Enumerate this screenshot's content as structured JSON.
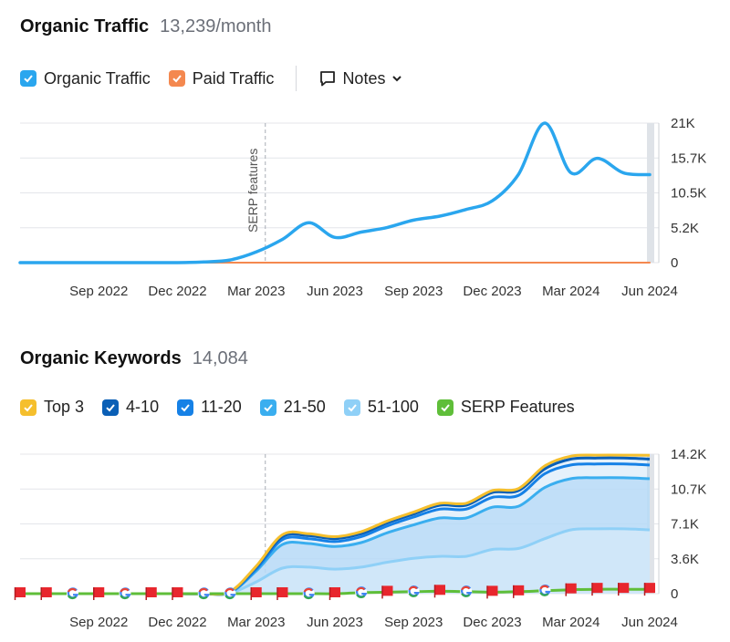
{
  "traffic": {
    "title": "Organic Traffic",
    "metric": "13,239/month",
    "legend": [
      {
        "label": "Organic Traffic",
        "color": "#2aa6ee"
      },
      {
        "label": "Paid Traffic",
        "color": "#f4884f"
      }
    ],
    "notes_label": "Notes",
    "annotation": "SERP features"
  },
  "keywords": {
    "title": "Organic Keywords",
    "metric": "14,084",
    "legend": [
      {
        "label": "Top 3",
        "color": "#f5bf2d"
      },
      {
        "label": "4-10",
        "color": "#0a5fb6"
      },
      {
        "label": "11-20",
        "color": "#1681e6"
      },
      {
        "label": "21-50",
        "color": "#3aaeef"
      },
      {
        "label": "51-100",
        "color": "#8fd0f7"
      },
      {
        "label": "SERP Features",
        "color": "#5fbe39"
      }
    ]
  },
  "chart_data": [
    {
      "type": "line",
      "x_labels": [
        "Sep 2022",
        "Dec 2022",
        "Mar 2023",
        "Jun 2023",
        "Sep 2023",
        "Dec 2023",
        "Mar 2024",
        "Jun 2024"
      ],
      "y_ticks": [
        "21K",
        "15.7K",
        "10.5K",
        "5.2K",
        "0"
      ],
      "ylim": [
        0,
        21000
      ],
      "x": [
        "Jun 2022",
        "Jul 2022",
        "Aug 2022",
        "Sep 2022",
        "Oct 2022",
        "Nov 2022",
        "Dec 2022",
        "Jan 2023",
        "Feb 2023",
        "Mar 2023",
        "Apr 2023",
        "May 2023",
        "Jun 2023",
        "Jul 2023",
        "Aug 2023",
        "Sep 2023",
        "Oct 2023",
        "Nov 2023",
        "Dec 2023",
        "Jan 2024",
        "Feb 2024",
        "Mar 2024",
        "Apr 2024",
        "May 2024",
        "Jun 2024"
      ],
      "series": [
        {
          "name": "Organic Traffic",
          "color": "#2aa6ee",
          "values": [
            0,
            0,
            0,
            0,
            0,
            0,
            0,
            100,
            400,
            1600,
            3500,
            6000,
            3800,
            4600,
            5300,
            6400,
            7000,
            8000,
            9300,
            13300,
            21000,
            13500,
            15700,
            13500,
            13239
          ]
        },
        {
          "name": "Paid Traffic",
          "color": "#f4884f",
          "values": [
            0,
            0,
            0,
            0,
            0,
            0,
            0,
            0,
            0,
            0,
            0,
            0,
            0,
            0,
            0,
            0,
            0,
            0,
            0,
            0,
            0,
            0,
            0,
            0,
            0
          ]
        }
      ],
      "annotation": {
        "x": "Mar 2023",
        "label": "SERP features"
      },
      "grid": true
    },
    {
      "type": "area",
      "x_labels": [
        "Sep 2022",
        "Dec 2022",
        "Mar 2023",
        "Jun 2023",
        "Sep 2023",
        "Dec 2023",
        "Mar 2024",
        "Jun 2024"
      ],
      "y_ticks": [
        "14.2K",
        "10.7K",
        "7.1K",
        "3.6K",
        "0"
      ],
      "ylim": [
        0,
        14200
      ],
      "x": [
        "Jun 2022",
        "Jul 2022",
        "Aug 2022",
        "Sep 2022",
        "Oct 2022",
        "Nov 2022",
        "Dec 2022",
        "Jan 2023",
        "Feb 2023",
        "Mar 2023",
        "Apr 2023",
        "May 2023",
        "Jun 2023",
        "Jul 2023",
        "Aug 2023",
        "Sep 2023",
        "Oct 2023",
        "Nov 2023",
        "Dec 2023",
        "Jan 2024",
        "Feb 2024",
        "Mar 2024",
        "Apr 2024",
        "May 2024",
        "Jun 2024"
      ],
      "series": [
        {
          "name": "Top 3",
          "color": "#f5bf2d",
          "values": [
            0,
            0,
            0,
            0,
            0,
            0,
            0,
            0,
            200,
            2800,
            6000,
            6100,
            5800,
            6300,
            7400,
            8300,
            9200,
            9200,
            10500,
            10700,
            13000,
            14000,
            14100,
            14100,
            14084
          ]
        },
        {
          "name": "4-10",
          "color": "#0a5fb6",
          "values": [
            0,
            0,
            0,
            0,
            0,
            0,
            0,
            0,
            200,
            2700,
            5800,
            5900,
            5600,
            6100,
            7200,
            8100,
            9000,
            9000,
            10300,
            10500,
            12700,
            13700,
            13800,
            13800,
            13700
          ]
        },
        {
          "name": "11-20",
          "color": "#1681e6",
          "values": [
            0,
            0,
            0,
            0,
            0,
            0,
            0,
            0,
            150,
            2500,
            5500,
            5600,
            5300,
            5800,
            6900,
            7800,
            8600,
            8600,
            9800,
            10000,
            12200,
            13100,
            13200,
            13200,
            13100
          ]
        },
        {
          "name": "21-50",
          "color": "#3aaeef",
          "values": [
            0,
            0,
            0,
            0,
            0,
            0,
            0,
            0,
            100,
            2300,
            5000,
            5100,
            4800,
            5200,
            6200,
            7000,
            7700,
            7700,
            8800,
            8900,
            10800,
            11700,
            11800,
            11800,
            11700
          ]
        },
        {
          "name": "51-100",
          "color": "#8fd0f7",
          "values": [
            0,
            0,
            0,
            0,
            0,
            0,
            0,
            0,
            50,
            1200,
            2600,
            2700,
            2500,
            2700,
            3200,
            3600,
            3800,
            3800,
            4500,
            4600,
            5600,
            6500,
            6600,
            6600,
            6500
          ]
        },
        {
          "name": "SERP Features",
          "color": "#5fbe39",
          "values": [
            0,
            0,
            0,
            0,
            0,
            0,
            0,
            0,
            0,
            0,
            0,
            0,
            0,
            100,
            150,
            200,
            250,
            200,
            150,
            200,
            300,
            400,
            450,
            450,
            450
          ]
        }
      ],
      "markers": [
        "flag",
        "flag",
        "google",
        "flag",
        "google",
        "flag",
        "flag",
        "google",
        "google",
        "flag",
        "flag",
        "google",
        "flag",
        "google",
        "flag",
        "google",
        "flag",
        "google",
        "flag",
        "flag",
        "google",
        "flag",
        "flag",
        "flag",
        "flag"
      ],
      "annotation": {
        "x": "Mar 2023"
      },
      "grid": true
    }
  ]
}
